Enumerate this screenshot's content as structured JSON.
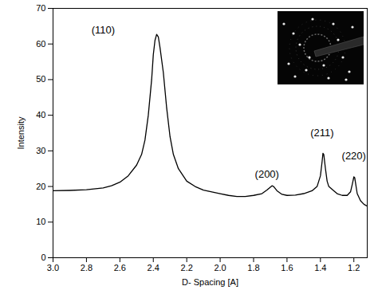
{
  "chart_data": {
    "type": "line",
    "x_label": "D- Spacing [A]",
    "y_label": "Intensity",
    "color": "#000000",
    "grid": false,
    "x": [
      3.0,
      2.9,
      2.8,
      2.7,
      2.65,
      2.6,
      2.55,
      2.5,
      2.47,
      2.45,
      2.43,
      2.41,
      2.4,
      2.39,
      2.38,
      2.37,
      2.36,
      2.34,
      2.32,
      2.3,
      2.28,
      2.25,
      2.2,
      2.15,
      2.1,
      2.0,
      1.95,
      1.9,
      1.85,
      1.8,
      1.75,
      1.72,
      1.7,
      1.69,
      1.68,
      1.66,
      1.63,
      1.6,
      1.55,
      1.5,
      1.45,
      1.42,
      1.4,
      1.39,
      1.385,
      1.38,
      1.37,
      1.36,
      1.35,
      1.32,
      1.3,
      1.27,
      1.24,
      1.22,
      1.21,
      1.2,
      1.195,
      1.19,
      1.18,
      1.16,
      1.14,
      1.12
    ],
    "values": [
      18.8,
      18.9,
      19.1,
      19.6,
      20.2,
      21.2,
      23,
      26,
      29,
      33,
      40,
      50,
      57,
      61,
      62.7,
      62,
      59,
      52,
      42,
      34,
      29,
      25,
      21.5,
      20,
      19,
      18,
      17.5,
      17.2,
      17.2,
      17.5,
      18,
      19,
      19.8,
      20.2,
      20,
      18.8,
      17.8,
      17.5,
      17.6,
      18,
      18.8,
      20,
      23,
      27,
      29.3,
      29,
      25,
      21.5,
      20,
      18.8,
      18,
      17.5,
      17.5,
      18.5,
      20.5,
      22.7,
      22.5,
      21,
      18,
      16,
      15,
      14.5
    ],
    "xlim": [
      3.0,
      1.12
    ],
    "xticks": [
      {
        "value": 3.0,
        "label": "3.0"
      },
      2.8,
      2.6,
      2.4,
      2.2,
      {
        "value": 2.0,
        "label": "2.0"
      },
      1.8,
      1.6,
      1.4,
      1.2
    ],
    "ylim": [
      0,
      70
    ],
    "yticks": [
      0,
      10,
      20,
      30,
      40,
      50,
      60,
      70
    ],
    "annotations": [
      {
        "text": "(110)",
        "x": 2.7,
        "y": 64
      },
      {
        "text": "(200)",
        "x": 1.72,
        "y": 23.5
      },
      {
        "text": "(211)",
        "x": 1.39,
        "y": 35
      },
      {
        "text": "(220)",
        "x": 1.2,
        "y": 28.5
      }
    ]
  }
}
